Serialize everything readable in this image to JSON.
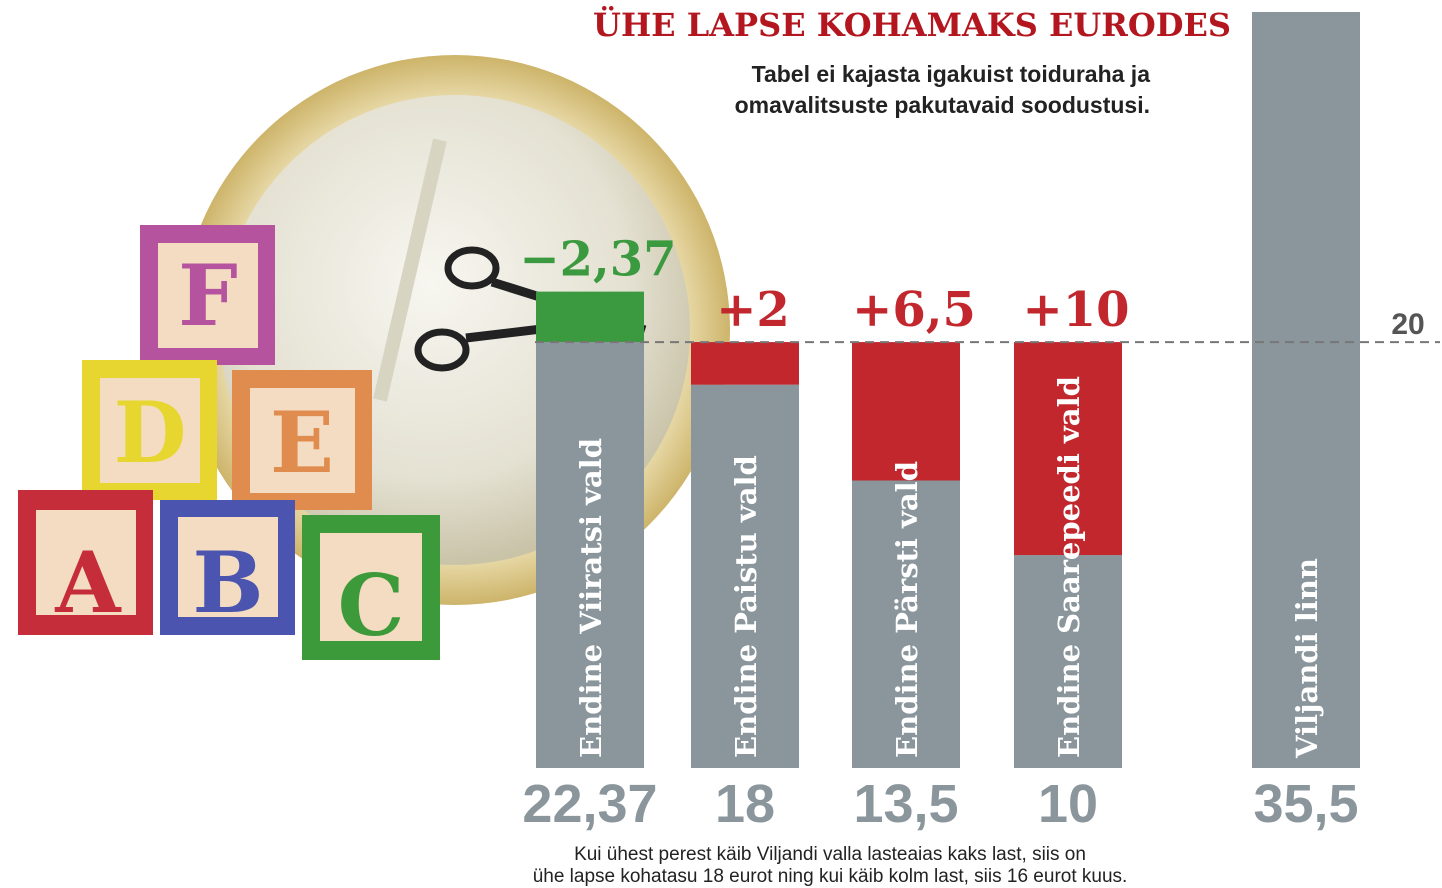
{
  "chart_data": {
    "type": "bar",
    "title": "ÜHE LAPSE KOHAMAKS EURODES",
    "subtitle": [
      "Tabel ei kajasta igakuist toiduraha ja",
      "omavalitsuste pakutavaid soodustusi."
    ],
    "categories": [
      "Endine Viiratsi vald",
      "Endine Paistu vald",
      "Endine Pärsti vald",
      "Endine Saarepeedi vald",
      "Viljandi linn"
    ],
    "values": [
      22.37,
      18,
      13.5,
      10,
      35.5
    ],
    "value_labels": [
      "22,37",
      "18",
      "13,5",
      "10",
      "35,5"
    ],
    "differences": [
      -2.37,
      2,
      6.5,
      10,
      null
    ],
    "difference_labels": [
      "−2,37",
      "+2",
      "+6,5",
      "+10",
      null
    ],
    "reference": 20,
    "color": "#8a969c",
    "increase_color": "#c1272d",
    "decrease_color": "#3b9a3f",
    "ylim": [
      0,
      35.5
    ],
    "note": [
      "Kui ühest perest käib Viljandi valla lasteaias kaks last, siis on",
      "ühe lapse kohatasu 18 eurot ning kui käib kolm last, siis 16 eurot kuus."
    ]
  },
  "illustration": {
    "blocks": [
      "F",
      "D",
      "E",
      "A",
      "B",
      "C"
    ]
  }
}
